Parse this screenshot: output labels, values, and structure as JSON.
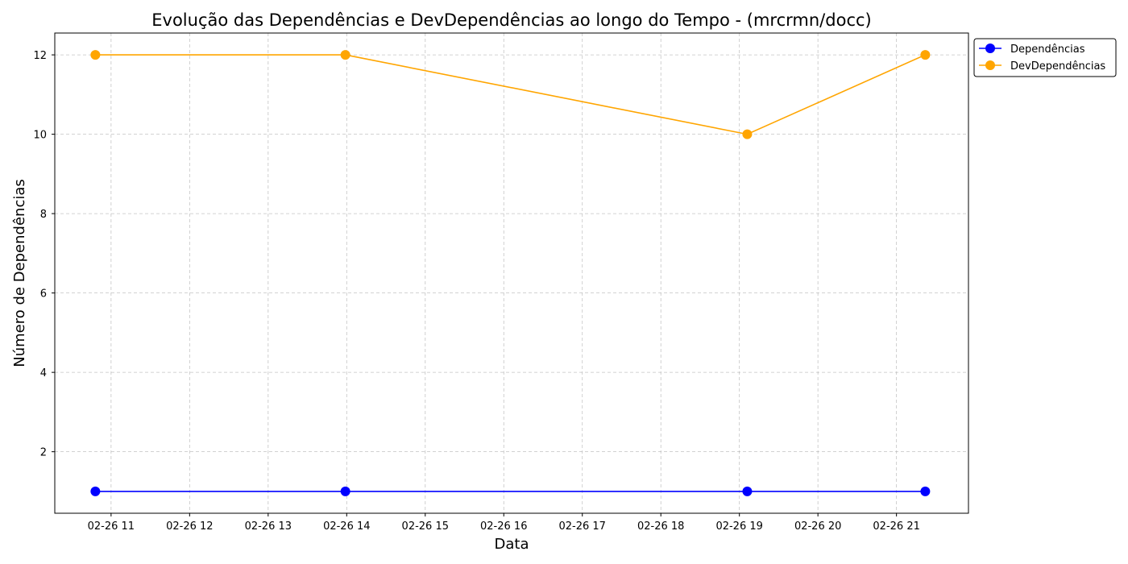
{
  "chart_data": {
    "type": "line",
    "title": "Evolução das Dependências e DevDependências ao longo do Tempo - (mrcrmn/docc)",
    "xlabel": "Data",
    "ylabel": "Número de Dependências",
    "x_axis_kind": "time",
    "x_ticks": [
      "02-26 11",
      "02-26 12",
      "02-26 13",
      "02-26 14",
      "02-26 15",
      "02-26 16",
      "02-26 17",
      "02-26 18",
      "02-26 19",
      "02-26 20",
      "02-26 21"
    ],
    "x_tick_times": [
      "02-26 11:00",
      "02-26 12:00",
      "02-26 13:00",
      "02-26 14:00",
      "02-26 15:00",
      "02-26 16:00",
      "02-26 17:00",
      "02-26 18:00",
      "02-26 19:00",
      "02-26 20:00",
      "02-26 21:00"
    ],
    "xlim": [
      "02-26 10:17",
      "02-26 21:55"
    ],
    "y_ticks": [
      2,
      4,
      6,
      8,
      10,
      12
    ],
    "ylim": [
      0.45,
      12.55
    ],
    "grid": true,
    "legend_position": "outside-upper-right",
    "x": [
      "02-26 10:48",
      "02-26 13:59",
      "02-26 19:06",
      "02-26 21:22"
    ],
    "series": [
      {
        "name": "Dependências",
        "color": "#0000ff",
        "values": [
          1,
          1,
          1,
          1
        ]
      },
      {
        "name": "DevDependências",
        "color": "#ffa500",
        "values": [
          12,
          12,
          10,
          12
        ]
      }
    ]
  }
}
